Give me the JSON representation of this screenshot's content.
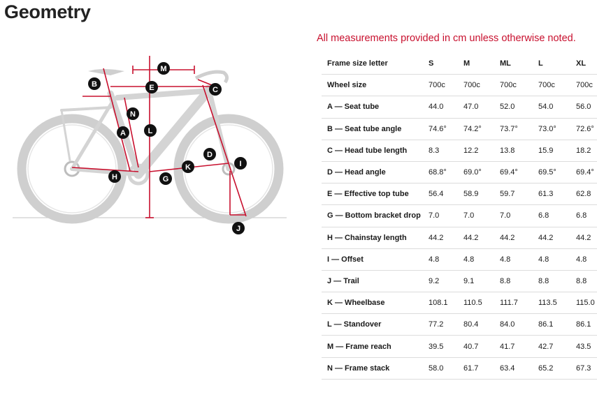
{
  "page": {
    "title": "Geometry",
    "note": "All measurements provided in cm unless otherwise noted."
  },
  "diagram": {
    "markers": [
      "A",
      "B",
      "C",
      "D",
      "E",
      "G",
      "H",
      "I",
      "J",
      "K",
      "L",
      "M",
      "N"
    ],
    "accent_color": "#c8102e",
    "marker_color": "#111111"
  },
  "table": {
    "header": [
      "Frame size letter",
      "S",
      "M",
      "ML",
      "L",
      "XL"
    ],
    "rows": [
      [
        "Wheel size",
        "700c",
        "700c",
        "700c",
        "700c",
        "700c"
      ],
      [
        "A — Seat tube",
        "44.0",
        "47.0",
        "52.0",
        "54.0",
        "56.0"
      ],
      [
        "B — Seat tube angle",
        "74.6°",
        "74.2°",
        "73.7°",
        "73.0°",
        "72.6°"
      ],
      [
        "C — Head tube length",
        "8.3",
        "12.2",
        "13.8",
        "15.9",
        "18.2"
      ],
      [
        "D — Head angle",
        "68.8°",
        "69.0°",
        "69.4°",
        "69.5°",
        "69.4°"
      ],
      [
        "E — Effective top tube",
        "56.4",
        "58.9",
        "59.7",
        "61.3",
        "62.8"
      ],
      [
        "G — Bottom bracket drop",
        "7.0",
        "7.0",
        "7.0",
        "6.8",
        "6.8"
      ],
      [
        "H — Chainstay length",
        "44.2",
        "44.2",
        "44.2",
        "44.2",
        "44.2"
      ],
      [
        "I — Offset",
        "4.8",
        "4.8",
        "4.8",
        "4.8",
        "4.8"
      ],
      [
        "J — Trail",
        "9.2",
        "9.1",
        "8.8",
        "8.8",
        "8.8"
      ],
      [
        "K — Wheelbase",
        "108.1",
        "110.5",
        "111.7",
        "113.5",
        "115.0"
      ],
      [
        "L — Standover",
        "77.2",
        "80.4",
        "84.0",
        "86.1",
        "86.1"
      ],
      [
        "M — Frame reach",
        "39.5",
        "40.7",
        "41.7",
        "42.7",
        "43.5"
      ],
      [
        "N — Frame stack",
        "58.0",
        "61.7",
        "63.4",
        "65.2",
        "67.3"
      ]
    ]
  }
}
